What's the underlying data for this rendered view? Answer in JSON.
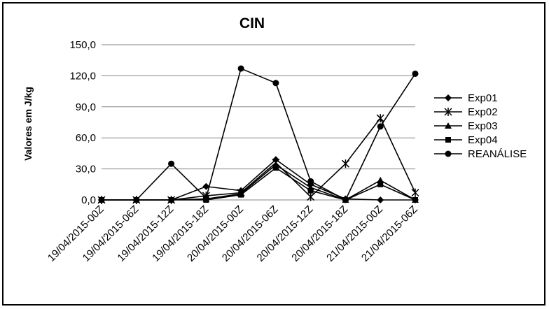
{
  "chart_data": {
    "type": "line",
    "title": "CIN",
    "ylabel": "Valores em J/kg",
    "xlabel": "",
    "ylim": [
      0,
      150
    ],
    "yticks": [
      "0,0",
      "30,0",
      "60,0",
      "90,0",
      "120,0",
      "150,0"
    ],
    "categories": [
      "19/04/2015-00Z",
      "19/04/2015-06Z",
      "19/04/2015-12Z",
      "19/04/2015-18Z",
      "20/04/2015-00Z",
      "20/04/2015-06Z",
      "20/04/2015-12Z",
      "20/04/2015-18Z",
      "21/04/2015-00Z",
      "21/04/2015-06Z"
    ],
    "grid": "horizontal",
    "legend_position": "right",
    "series": [
      {
        "name": "Exp01",
        "marker": "diamond",
        "values": [
          0,
          0,
          0,
          13,
          9,
          39,
          15,
          1,
          0,
          0
        ]
      },
      {
        "name": "Exp02",
        "marker": "star",
        "values": [
          0,
          0,
          0,
          4,
          7,
          36,
          3,
          35,
          79,
          7
        ]
      },
      {
        "name": "Exp03",
        "marker": "triangle",
        "values": [
          0,
          0,
          0,
          1,
          6,
          34,
          12,
          0,
          19,
          0
        ]
      },
      {
        "name": "Exp04",
        "marker": "square",
        "values": [
          0,
          0,
          0,
          0,
          5,
          31,
          9,
          0,
          15,
          0
        ]
      },
      {
        "name": "REANÁLISE",
        "marker": "circle",
        "values": [
          0,
          0,
          35,
          2,
          127,
          113,
          18,
          0,
          71,
          122
        ]
      }
    ]
  }
}
